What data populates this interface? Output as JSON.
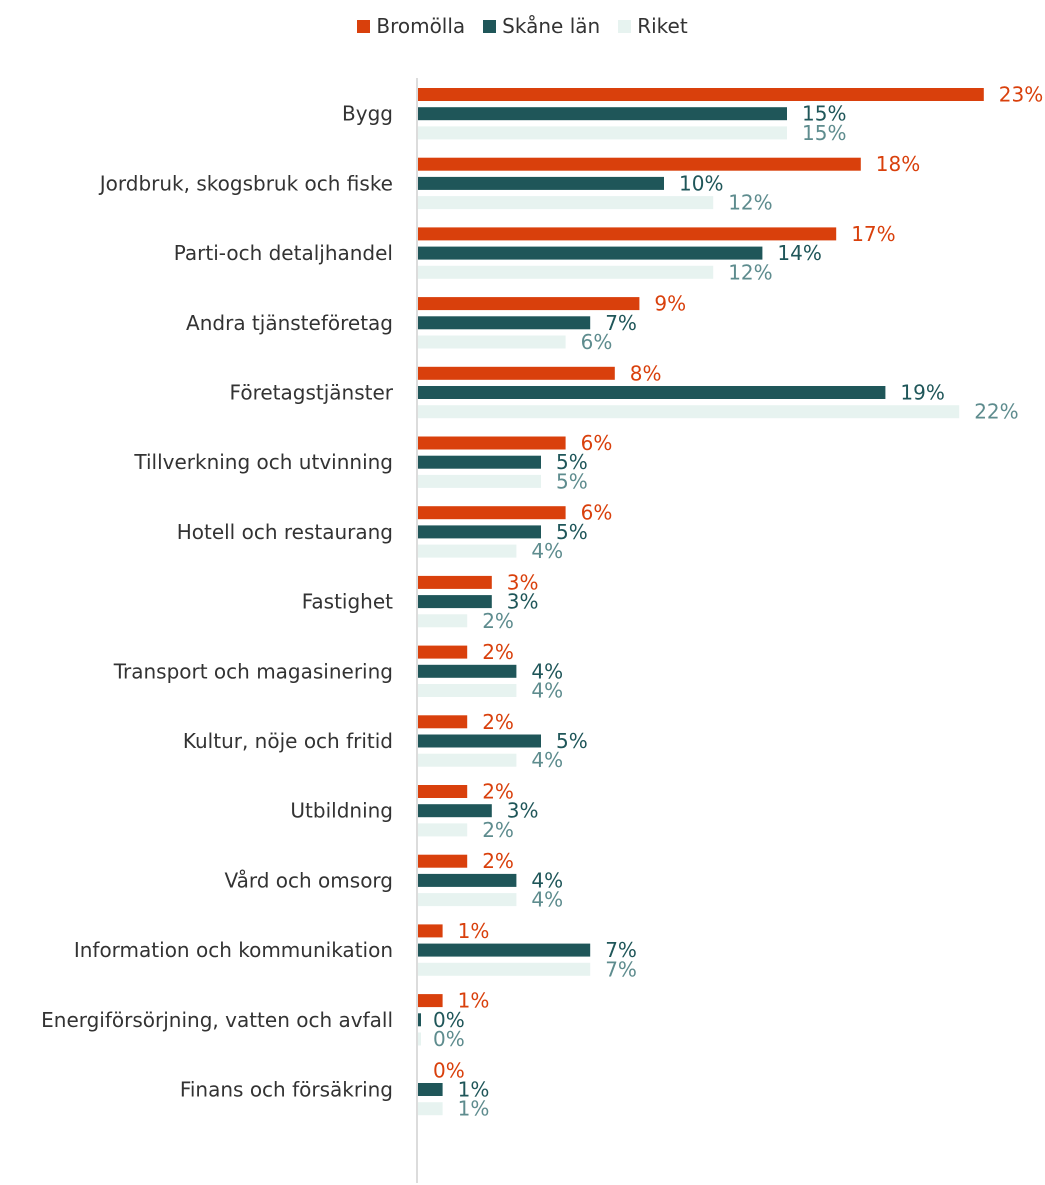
{
  "chart_data": {
    "type": "bar",
    "orientation": "horizontal",
    "categories": [
      "Bygg",
      "Jordbruk, skogsbruk och fiske",
      "Parti-och detaljhandel",
      "Andra tjänsteföretag",
      "Företagstjänster",
      "Tillverkning och utvinning",
      "Hotell och restaurang",
      "Fastighet",
      "Transport och magasinering",
      "Kultur, nöje och fritid",
      "Utbildning",
      "Vård och omsorg",
      "Information och kommunikation",
      "Energiförsörjning, vatten och avfall",
      "Finans och försäkring"
    ],
    "series": [
      {
        "name": "Bromölla",
        "color": "#D9400C",
        "label_color": "#D9400C",
        "values": [
          23,
          18,
          17,
          9,
          8,
          6,
          6,
          3,
          2,
          2,
          2,
          2,
          1,
          1,
          0
        ],
        "labels": [
          "23%",
          "18%",
          "17%",
          "9%",
          "8%",
          "6%",
          "6%",
          "3%",
          "2%",
          "2%",
          "2%",
          "2%",
          "1%",
          "1%",
          "0%"
        ]
      },
      {
        "name": "Skåne län",
        "color": "#1F5659",
        "label_color": "#1F5659",
        "values": [
          15,
          10,
          14,
          7,
          19,
          5,
          5,
          3,
          4,
          5,
          3,
          4,
          7,
          0,
          1
        ],
        "labels": [
          "15%",
          "10%",
          "14%",
          "7%",
          "19%",
          "5%",
          "5%",
          "3%",
          "4%",
          "5%",
          "3%",
          "4%",
          "7%",
          "0%",
          "1%"
        ]
      },
      {
        "name": "Riket",
        "color": "#E7F3F0",
        "label_color": "#5E8C8E",
        "values": [
          15,
          12,
          12,
          6,
          22,
          5,
          4,
          2,
          4,
          4,
          2,
          4,
          7,
          0,
          1
        ],
        "labels": [
          "15%",
          "12%",
          "12%",
          "6%",
          "22%",
          "5%",
          "4%",
          "2%",
          "4%",
          "4%",
          "2%",
          "4%",
          "7%",
          "0%",
          "1%"
        ]
      }
    ],
    "legend_position": "top-center",
    "grid": false
  }
}
